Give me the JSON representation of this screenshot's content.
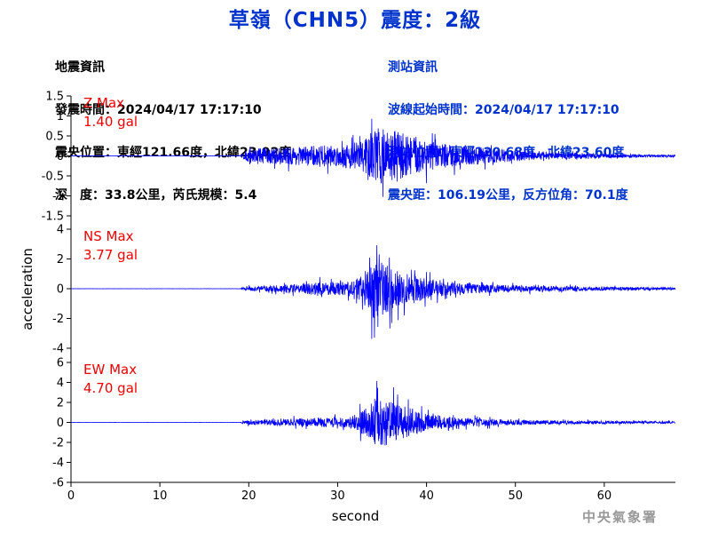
{
  "title": "草嶺（CHN5）震度：2級",
  "earthquake_info": {
    "heading": "地震資訊",
    "origin_time": "發震時間：2024/04/17 17:17:10",
    "epicenter": "震央位置：東經121.66度，北緯23.92度",
    "depth_magnitude": "深　度：33.8公里，芮氏規模：5.4"
  },
  "station_info": {
    "heading": "測站資訊",
    "wave_start": "波線起始時間：2024/04/17 17:17:10",
    "location": "測站位置：東經120.68度，北緯23.60度",
    "distance": "震央距：106.19公里，反方位角：70.1度"
  },
  "footer": "中央氣象署",
  "colors": {
    "trace": "#0000ff",
    "label": "#ee0000",
    "title": "#0033cc",
    "axis": "#000000"
  },
  "chart_data": {
    "type": "line",
    "xlabel": "second",
    "ylabel": "acceleration",
    "xlim": [
      0,
      68
    ],
    "xticks": [
      0,
      10,
      20,
      30,
      40,
      50,
      60
    ],
    "grid": false,
    "panels": [
      {
        "name": "Z Max",
        "max_label": "1.40 gal",
        "ylim": [
          -1.5,
          1.5
        ],
        "yticks": [
          -1.5,
          -1,
          -0.5,
          0,
          0.5,
          1,
          1.5
        ],
        "ytick_labels": [
          "-1.5",
          "-1",
          "-0.5",
          "0",
          "0.5",
          "1",
          "1.5"
        ],
        "envelope": {
          "t": [
            0,
            19,
            19.3,
            20,
            21,
            22,
            24,
            26,
            28,
            30,
            32,
            33,
            34,
            35,
            36,
            37,
            38,
            39,
            40,
            42,
            44,
            46,
            48,
            50,
            52,
            54,
            56,
            58,
            60,
            62,
            64,
            66,
            68
          ],
          "amp": [
            0.003,
            0.003,
            0.12,
            0.3,
            0.38,
            0.35,
            0.4,
            0.42,
            0.5,
            0.48,
            0.65,
            0.8,
            1.15,
            1.35,
            1.1,
            1.2,
            0.95,
            0.85,
            0.7,
            0.55,
            0.45,
            0.4,
            0.3,
            0.25,
            0.18,
            0.16,
            0.15,
            0.12,
            0.1,
            0.08,
            0.06,
            0.05,
            0.05
          ]
        }
      },
      {
        "name": "NS Max",
        "max_label": "3.77 gal",
        "ylim": [
          -4,
          4
        ],
        "yticks": [
          -4,
          -2,
          0,
          2,
          4
        ],
        "ytick_labels": [
          "-4",
          "-2",
          "0",
          "2",
          "4"
        ],
        "envelope": {
          "t": [
            0,
            19,
            19.3,
            20,
            21,
            22,
            24,
            26,
            28,
            30,
            32,
            33,
            34,
            35,
            36,
            37,
            38,
            39,
            40,
            42,
            44,
            46,
            48,
            50,
            52,
            54,
            56,
            58,
            60,
            62,
            64,
            66,
            68
          ],
          "amp": [
            0.01,
            0.01,
            0.15,
            0.25,
            0.3,
            0.35,
            0.45,
            0.6,
            0.8,
            0.8,
            1.0,
            2.2,
            3.7,
            3.3,
            2.6,
            2.0,
            2.0,
            1.6,
            1.2,
            0.9,
            0.7,
            0.55,
            0.45,
            0.4,
            0.35,
            0.3,
            0.28,
            0.25,
            0.22,
            0.2,
            0.18,
            0.15,
            0.15
          ]
        }
      },
      {
        "name": "EW Max",
        "max_label": "4.70 gal",
        "ylim": [
          -6,
          6
        ],
        "yticks": [
          -6,
          -4,
          -2,
          0,
          2,
          4,
          6
        ],
        "ytick_labels": [
          "-6",
          "-4",
          "-2",
          "0",
          "2",
          "4",
          "6"
        ],
        "envelope": {
          "t": [
            0,
            19,
            19.3,
            20,
            21,
            22,
            24,
            26,
            28,
            30,
            32,
            33,
            34,
            35,
            36,
            37,
            38,
            39,
            40,
            42,
            44,
            46,
            48,
            50,
            52,
            54,
            56,
            58,
            60,
            62,
            64,
            66,
            68
          ],
          "amp": [
            0.01,
            0.01,
            0.2,
            0.4,
            0.45,
            0.5,
            0.6,
            0.7,
            0.85,
            0.9,
            1.2,
            2.5,
            4.3,
            4.6,
            3.8,
            3.0,
            2.8,
            2.2,
            1.6,
            1.2,
            0.9,
            0.7,
            0.6,
            0.45,
            0.4,
            0.35,
            0.32,
            0.3,
            0.28,
            0.25,
            0.22,
            0.2,
            0.2
          ]
        }
      }
    ]
  }
}
